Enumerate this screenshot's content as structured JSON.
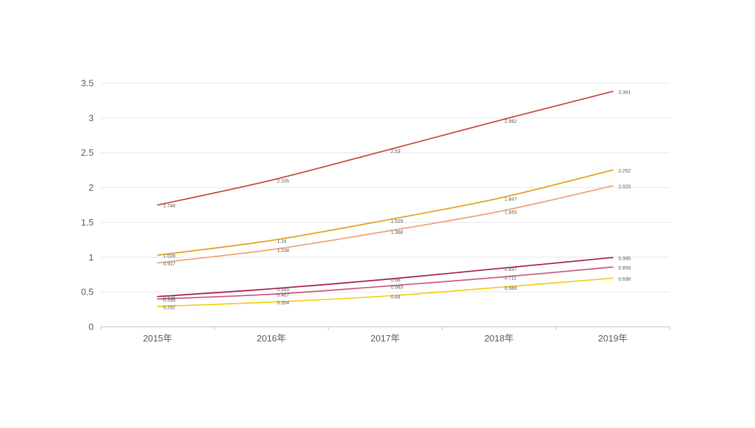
{
  "chart_data": {
    "type": "line",
    "title": "",
    "xlabel": "",
    "ylabel": "",
    "categories": [
      "2015年",
      "2016年",
      "2017年",
      "2018年",
      "2019年"
    ],
    "ylim": [
      0,
      3.5
    ],
    "yticks": [
      "0",
      "0.5",
      "1",
      "1.5",
      "2",
      "2.5",
      "3",
      "3.5"
    ],
    "grid": true,
    "legend": "none",
    "series": [
      {
        "color": "#C9463D",
        "values": [
          1.748,
          2.105,
          2.53,
          2.962,
          3.381
        ]
      },
      {
        "color": "#E3A21A",
        "values": [
          1.028,
          1.24,
          1.529,
          1.847,
          2.252
        ]
      },
      {
        "color": "#F0A070",
        "values": [
          0.917,
          1.108,
          1.368,
          1.655,
          2.025
        ]
      },
      {
        "color": "#A51E4E",
        "values": [
          0.434,
          0.545,
          0.68,
          0.837,
          0.995
        ]
      },
      {
        "color": "#C75A7E",
        "values": [
          0.398,
          0.467,
          0.583,
          0.711,
          0.858
        ]
      },
      {
        "color": "#F2CE1D",
        "values": [
          0.292,
          0.354,
          0.44,
          0.566,
          0.698
        ]
      }
    ]
  }
}
